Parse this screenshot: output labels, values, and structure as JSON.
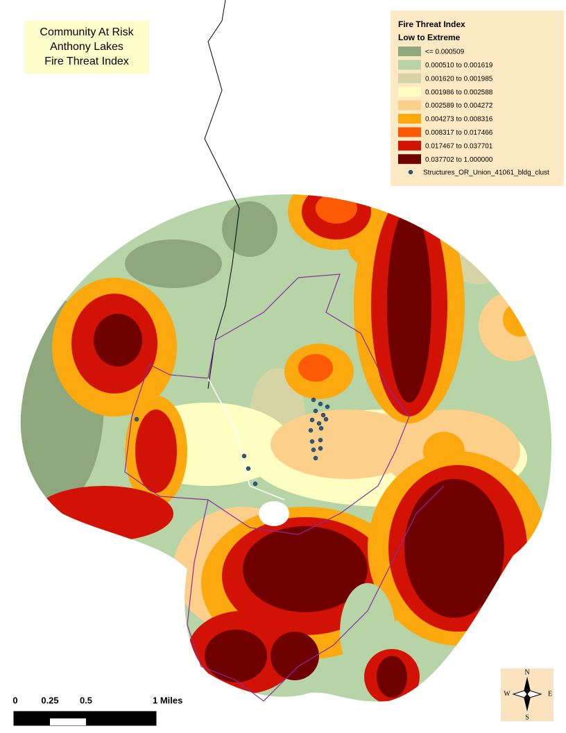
{
  "title": [
    "Community At Risk",
    "Anthony Lakes",
    "Fire Threat Index"
  ],
  "legend": {
    "title": "Fire Threat Index",
    "subtitle": "Low to Extreme",
    "items": [
      {
        "label": "<= 0.000509",
        "color": "#8ea77c"
      },
      {
        "label": "0.000510  to  0.001619",
        "color": "#b7d4a6"
      },
      {
        "label": "0.001620  to  0.001985",
        "color": "#d6d3a4"
      },
      {
        "label": "0.001986  to  0.002588",
        "color": "#fefec2"
      },
      {
        "label": "0.002589  to  0.004272",
        "color": "#fcd08a"
      },
      {
        "label": "0.004273  to  0.008316",
        "color": "#fca80f"
      },
      {
        "label": "0.008317  to  0.017466",
        "color": "#fc5a05"
      },
      {
        "label": "0.017467  to  0.037701",
        "color": "#d21205"
      },
      {
        "label": "0.037702  to  1.000000",
        "color": "#6f0000"
      }
    ],
    "points_label": "Structures_OR_Union_41061_bldg_clust"
  },
  "scale_bar": {
    "labels": [
      "0",
      "0.25",
      "0.5",
      "1 Miles"
    ]
  },
  "compass": {
    "n": "N",
    "e": "E",
    "s": "S",
    "w": "W"
  }
}
